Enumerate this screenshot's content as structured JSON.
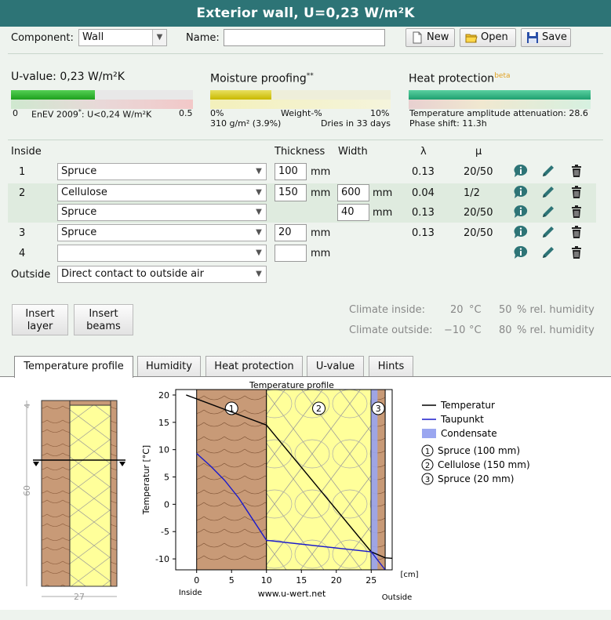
{
  "title": "Exterior wall, U=0,23 W/m²K",
  "toolbar": {
    "component_label": "Component:",
    "component_value": "Wall",
    "name_label": "Name:",
    "name_value": "",
    "new_label": "New",
    "open_label": "Open",
    "save_label": "Save"
  },
  "summary": {
    "uvalue": {
      "title": "U-value: 0,23 W/m²K",
      "fill": 0.46,
      "scale_left": "0",
      "scale_mid": "EnEV 2009",
      "scale_mid_sup": "*",
      "scale_mid_rest": ": U<0,24 W/m²K",
      "scale_right": "0.5"
    },
    "moisture": {
      "title": "Moisture proofing",
      "title_sup": "**",
      "fill": 0.34,
      "scale_left": "0%",
      "scale_mid": "Weight-%",
      "scale_right": "10%",
      "line2_left": "310 g/m² (3.9%)",
      "line2_right": "Dries in 33 days"
    },
    "heat": {
      "title": "Heat protection",
      "title_sup": "beta",
      "fill": 1.0,
      "line1": "Temperature amplitude attenuation: 28.6",
      "line2": "Phase shift: 11.3h"
    }
  },
  "layers": {
    "headers": {
      "inside": "Inside",
      "thickness": "Thickness",
      "width": "Width",
      "lambda": "λ",
      "mu": "μ"
    },
    "unit": "mm",
    "rows": [
      {
        "index": "1",
        "material": "Spruce",
        "thickness": "100",
        "width": "",
        "lambda": "0.13",
        "mu": "20/50"
      },
      {
        "index": "2",
        "material": "Cellulose",
        "thickness": "150",
        "width": "600",
        "lambda": "0.04",
        "mu": "1/2"
      },
      {
        "index": "",
        "material": "Spruce",
        "thickness": "",
        "width": "40",
        "lambda": "0.13",
        "mu": "20/50"
      },
      {
        "index": "3",
        "material": "Spruce",
        "thickness": "20",
        "width": "",
        "lambda": "0.13",
        "mu": "20/50"
      },
      {
        "index": "4",
        "material": "",
        "thickness": "",
        "width": "",
        "lambda": "",
        "mu": ""
      }
    ],
    "outside_label": "Outside",
    "outside_value": "Direct contact to outside air"
  },
  "actions": {
    "insert_layer_1": "Insert",
    "insert_layer_2": "layer",
    "insert_beams_1": "Insert",
    "insert_beams_2": "beams"
  },
  "climate": {
    "inside_label": "Climate inside:",
    "inside_temp": "20",
    "inside_unit": "°C",
    "inside_hum": "50",
    "outside_label": "Climate outside:",
    "outside_temp": "−10",
    "outside_unit": "°C",
    "outside_hum": "80",
    "hum_unit": "% rel. humidity"
  },
  "tabs": [
    "Temperature profile",
    "Humidity",
    "Heat protection",
    "U-value",
    "Hints"
  ],
  "sketch": {
    "top_dim": "4",
    "height_dim": "60",
    "width_dim": "27"
  },
  "chart_data": {
    "type": "line",
    "title": "Temperature profile",
    "ylabel": "Temperatur [°C]",
    "xlabel": "[cm]",
    "x_left_label": "Inside",
    "x_right_label": "Outside",
    "footer": "www.u-wert.net",
    "xlim": [
      -3,
      28
    ],
    "ylim": [
      -12,
      21
    ],
    "xticks": [
      0,
      5,
      10,
      15,
      20,
      25
    ],
    "yticks": [
      -10,
      -5,
      0,
      5,
      10,
      15,
      20
    ],
    "layers": [
      {
        "label": "1",
        "from": 0,
        "to": 10,
        "color": "#c89a77"
      },
      {
        "label": "2",
        "from": 10,
        "to": 25,
        "color": "#ffff9a"
      },
      {
        "label": "3",
        "from": 25,
        "to": 27,
        "color": "#c89a77"
      }
    ],
    "condensate": {
      "from": 25.0,
      "to": 25.9,
      "color": "#9aa6f0"
    },
    "series": [
      {
        "name": "Temperatur",
        "color": "#000000",
        "x": [
          -1.5,
          0,
          10,
          25,
          27,
          28
        ],
        "y": [
          20,
          19.3,
          14.5,
          -8.7,
          -9.8,
          -9.9
        ]
      },
      {
        "name": "Taupunkt",
        "color": "#1a1acc",
        "x": [
          0,
          2,
          4,
          6,
          8,
          10,
          25,
          27
        ],
        "y": [
          9.3,
          7.0,
          4.4,
          1.2,
          -2.7,
          -6.6,
          -8.7,
          -12
        ]
      }
    ],
    "legend": {
      "temperatur": "Temperatur",
      "taupunkt": "Taupunkt",
      "condensate": "Condensate",
      "l1": "Spruce (100 mm)",
      "l2": "Cellulose (150 mm)",
      "l3": "Spruce (20 mm)"
    }
  }
}
